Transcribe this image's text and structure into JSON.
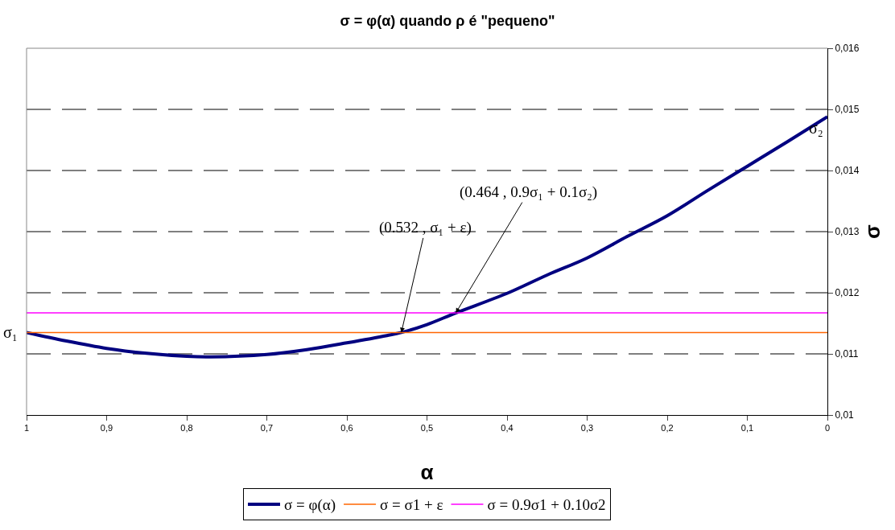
{
  "chart_data": {
    "type": "line",
    "title": "σ = φ(α) quando ρ é \"pequeno\"",
    "xlabel": "α",
    "ylabel": "σ",
    "xlim": [
      1,
      0
    ],
    "xticks": [
      {
        "value": 1,
        "label": "1"
      },
      {
        "value": 0.9,
        "label": "0,9"
      },
      {
        "value": 0.8,
        "label": "0,8"
      },
      {
        "value": 0.7,
        "label": "0,7"
      },
      {
        "value": 0.6,
        "label": "0,6"
      },
      {
        "value": 0.5,
        "label": "0,5"
      },
      {
        "value": 0.4,
        "label": "0,4"
      },
      {
        "value": 0.3,
        "label": "0,3"
      },
      {
        "value": 0.2,
        "label": "0,2"
      },
      {
        "value": 0.1,
        "label": "0,1"
      },
      {
        "value": 0,
        "label": "0"
      }
    ],
    "ylim": [
      0.01,
      0.016
    ],
    "yticks": [
      {
        "value": 0.01,
        "label": "0,01"
      },
      {
        "value": 0.011,
        "label": "0,011"
      },
      {
        "value": 0.012,
        "label": "0,012"
      },
      {
        "value": 0.013,
        "label": "0,013"
      },
      {
        "value": 0.014,
        "label": "0,014"
      },
      {
        "value": 0.015,
        "label": "0,015"
      },
      {
        "value": 0.016,
        "label": "0,016"
      }
    ],
    "grid": "y",
    "legend": "bottom",
    "marker": "none",
    "series": [
      {
        "name": "σ = φ(α)",
        "color": "#000080",
        "x": [
          1,
          0.95,
          0.9,
          0.85,
          0.8,
          0.77,
          0.7,
          0.65,
          0.6,
          0.55,
          0.532,
          0.5,
          0.464,
          0.4,
          0.35,
          0.3,
          0.25,
          0.2,
          0.15,
          0.1,
          0.05,
          0
        ],
        "values": [
          0.01135,
          0.01121,
          0.01109,
          0.01101,
          0.01096,
          0.01095,
          0.01099,
          0.01107,
          0.01118,
          0.0113,
          0.01135,
          0.01148,
          0.01167,
          0.01199,
          0.01229,
          0.01257,
          0.01292,
          0.01326,
          0.01367,
          0.01407,
          0.01447,
          0.01488
        ]
      },
      {
        "name": "σ = σ1 + ε",
        "color": "#ff6600",
        "x": [
          1,
          0
        ],
        "values": [
          0.01135,
          0.01135
        ]
      },
      {
        "name": "σ = 0.9σ1 + 0.10σ2",
        "color": "#ff00ff",
        "x": [
          1,
          0
        ],
        "values": [
          0.01167,
          0.01167
        ]
      }
    ],
    "annotations": [
      {
        "text": "(0.532 , σ₁ + ε)",
        "x": 0.532,
        "y": 0.01135
      },
      {
        "text": "(0.464 , 0.9σ₁ + 0.1σ₂)",
        "x": 0.464,
        "y": 0.01167
      },
      {
        "text": "σ₁",
        "x": 1,
        "y": 0.01135
      },
      {
        "text": "σ₂",
        "x": 0,
        "y": 0.01488
      }
    ]
  }
}
